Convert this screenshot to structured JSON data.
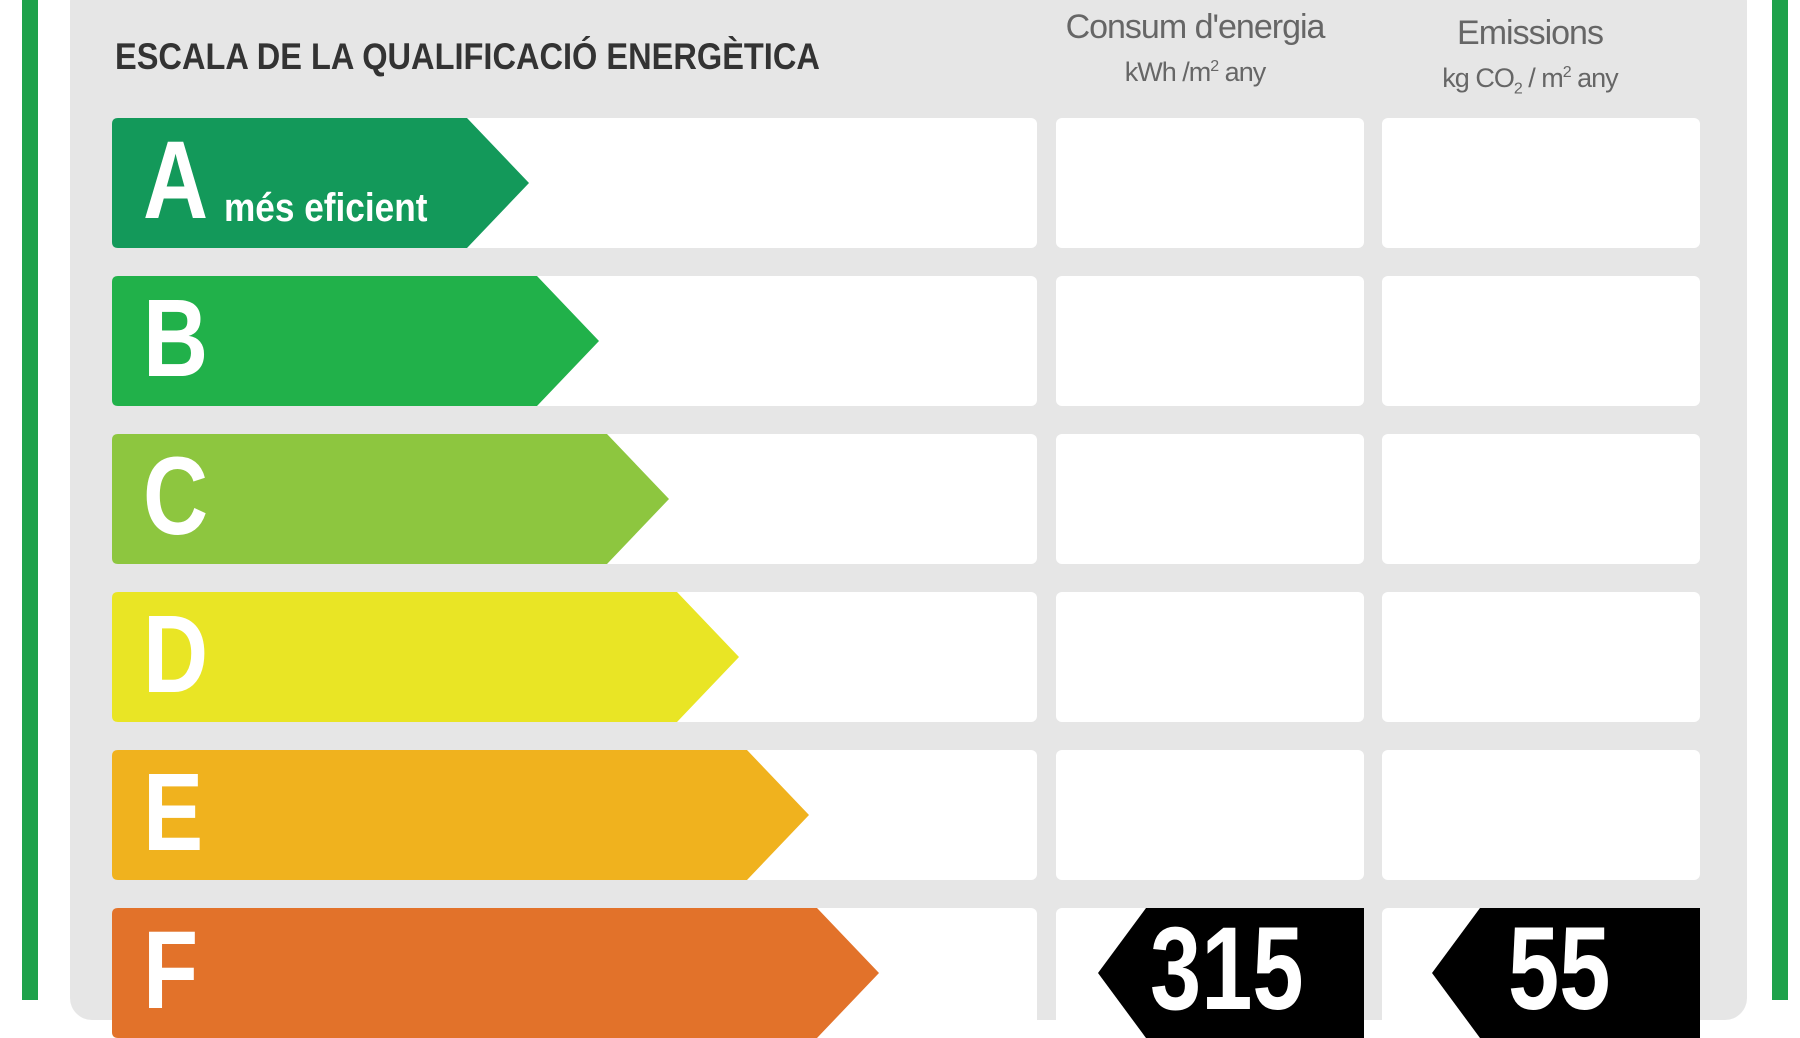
{
  "title": "ESCALA DE LA QUALIFICACIÓ ENERGÈTICA",
  "columns": {
    "energy": {
      "label": "Consum d'energia",
      "unit_main": "kWh /m",
      "unit_sup": "2",
      "unit_tail": " any"
    },
    "emissions": {
      "label": "Emissions",
      "unit_a": "kg CO",
      "unit_sub": "2",
      "unit_b": " / m",
      "unit_sup": "2",
      "unit_tail": " any"
    }
  },
  "classes": [
    {
      "letter": "A",
      "subtitle": "més eficient",
      "color": "#13995a"
    },
    {
      "letter": "B",
      "subtitle": "",
      "color": "#21b14a"
    },
    {
      "letter": "C",
      "subtitle": "",
      "color": "#8dc63f"
    },
    {
      "letter": "D",
      "subtitle": "",
      "color": "#e9e525"
    },
    {
      "letter": "E",
      "subtitle": "",
      "color": "#f0b21e"
    },
    {
      "letter": "F",
      "subtitle": "",
      "color": "#e2722a"
    }
  ],
  "rating": {
    "class": "F",
    "energy_value": "315",
    "emissions_value": "55",
    "tag_color": "#000000"
  }
}
